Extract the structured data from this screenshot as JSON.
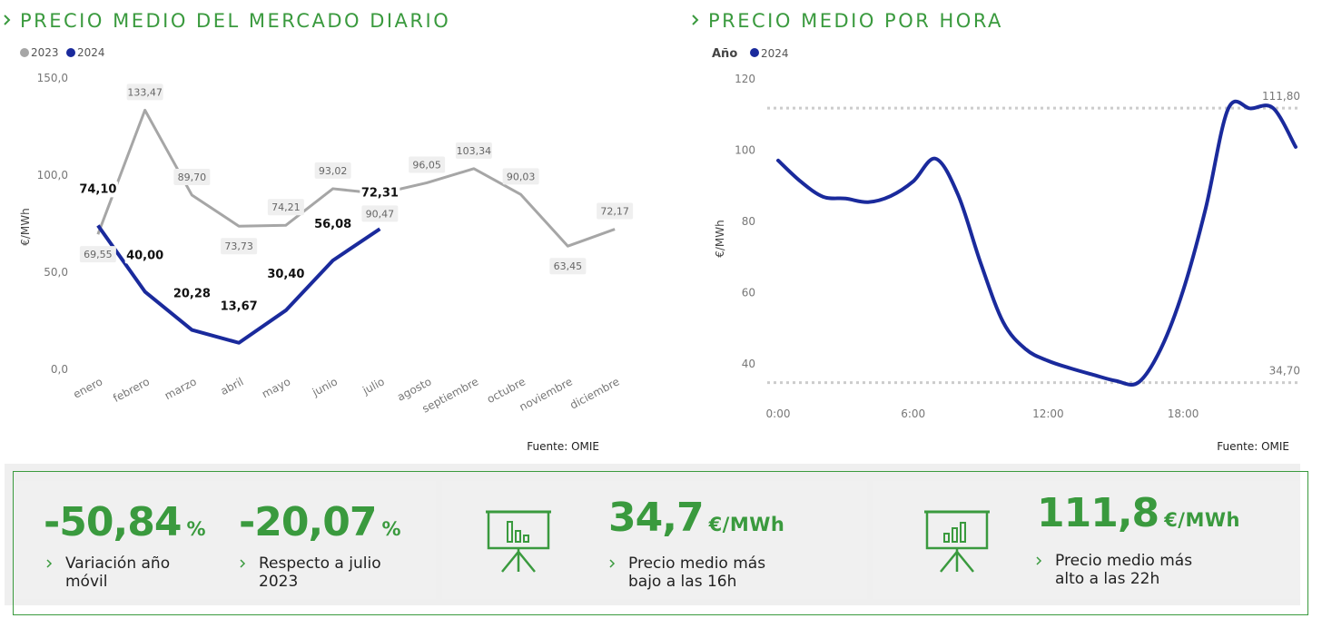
{
  "chart_data": [
    {
      "type": "line",
      "title": "PRECIO MEDIO DEL MERCADO DIARIO",
      "y_label": "€/MWh",
      "source": "Fuente: OMIE",
      "categories": [
        "enero",
        "febrero",
        "marzo",
        "abril",
        "mayo",
        "junio",
        "julio",
        "agosto",
        "septiembre",
        "octubre",
        "noviembre",
        "diciembre"
      ],
      "series": [
        {
          "name": "2023",
          "color": "#a6a6a6",
          "values": [
            69.55,
            133.47,
            89.7,
            73.73,
            74.21,
            93.02,
            90.47,
            96.05,
            103.34,
            90.03,
            63.45,
            72.17
          ],
          "value_labels": [
            "69,55",
            "133,47",
            "89,70",
            "73,73",
            "74,21",
            "93,02",
            "90,47",
            "96,05",
            "103,34",
            "90,03",
            "63,45",
            "72,17"
          ]
        },
        {
          "name": "2024",
          "color": "#1a2a9c",
          "values": [
            74.1,
            40.0,
            20.28,
            13.67,
            30.4,
            56.08,
            72.31,
            null,
            null,
            null,
            null,
            null
          ],
          "value_labels": [
            "74,10",
            "40,00",
            "20,28",
            "13,67",
            "30,40",
            "56,08",
            "72,31",
            null,
            null,
            null,
            null,
            null
          ]
        }
      ],
      "ylim": [
        0,
        150
      ],
      "yticks": [
        {
          "value": 0,
          "label": "0,0"
        },
        {
          "value": 50,
          "label": "50,0"
        },
        {
          "value": 100,
          "label": "100,0"
        },
        {
          "value": 150,
          "label": "150,0"
        }
      ]
    },
    {
      "type": "line",
      "title": "PRECIO MEDIO POR HORA",
      "legend_title": "Año",
      "y_label": "€/MWh",
      "source": "Fuente: OMIE",
      "x": [
        0,
        1,
        2,
        3,
        4,
        5,
        6,
        7,
        8,
        9,
        10,
        11,
        12,
        13,
        14,
        15,
        16,
        17,
        18,
        19,
        20,
        21,
        22,
        23
      ],
      "series": [
        {
          "name": "2024",
          "color": "#1a2a9c",
          "values": [
            97.1,
            91.2,
            86.9,
            86.4,
            85.4,
            87.1,
            91.2,
            97.6,
            87.4,
            68.3,
            51.7,
            44.1,
            40.8,
            38.7,
            36.9,
            35.2,
            34.7,
            44.1,
            60.6,
            83.6,
            111.6,
            111.7,
            111.8,
            100.9
          ]
        }
      ],
      "xlim": [
        0,
        23
      ],
      "xticks": [
        {
          "value": 0,
          "label": "0:00"
        },
        {
          "value": 6,
          "label": "6:00"
        },
        {
          "value": 12,
          "label": "12:00"
        },
        {
          "value": 18,
          "label": "18:00"
        }
      ],
      "ylim": [
        30,
        120
      ],
      "yticks": [
        40,
        60,
        80,
        100,
        120
      ],
      "reference_lines": [
        {
          "value": 111.8,
          "label": "111,80"
        },
        {
          "value": 34.7,
          "label": "34,70"
        }
      ]
    }
  ],
  "kpis": [
    {
      "items": [
        {
          "value": "-50,84",
          "unit": "%",
          "label": "Variación año móvil"
        },
        {
          "value": "-20,07",
          "unit": "%",
          "label": "Respecto a julio 2023"
        }
      ]
    },
    {
      "items": [
        {
          "value": "34,7",
          "unit": "€/MWh",
          "label": "Precio medio más bajo a las 16h"
        }
      ]
    },
    {
      "items": [
        {
          "value": "111,8",
          "unit": "€/MWh",
          "label": "Precio medio más alto a las 22h"
        }
      ]
    }
  ]
}
